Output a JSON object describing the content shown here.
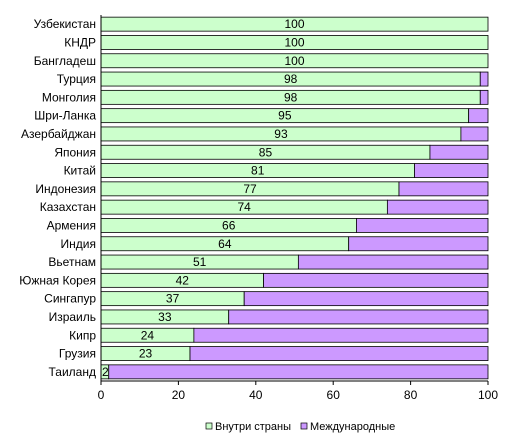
{
  "chart_data": {
    "type": "bar",
    "orientation": "horizontal",
    "stacked": true,
    "title": "",
    "xlabel": "",
    "ylabel": "",
    "xlim": [
      0,
      100
    ],
    "xticks": [
      0,
      20,
      40,
      60,
      80,
      100
    ],
    "grid": false,
    "legend_position": "bottom",
    "categories": [
      "Узбекистан",
      "КНДР",
      "Бангладеш",
      "Турция",
      "Монголия",
      "Шри-Ланка",
      "Азербайджан",
      "Япония",
      "Китай",
      "Индонезия",
      "Казахстан",
      "Армения",
      "Индия",
      "Вьетнам",
      "Южная Корея",
      "Сингапур",
      "Израиль",
      "Кипр",
      "Грузия",
      "Таиланд"
    ],
    "series": [
      {
        "name": "Внутри страны",
        "color": "#ccffcc",
        "values": [
          100,
          100,
          100,
          98,
          98,
          95,
          93,
          85,
          81,
          77,
          74,
          66,
          64,
          51,
          42,
          37,
          33,
          24,
          23,
          2
        ]
      },
      {
        "name": "Международные",
        "color": "#cc99ff",
        "values": [
          0,
          0,
          0,
          2,
          2,
          5,
          7,
          15,
          19,
          23,
          26,
          34,
          36,
          49,
          58,
          63,
          67,
          76,
          77,
          98
        ]
      }
    ]
  }
}
